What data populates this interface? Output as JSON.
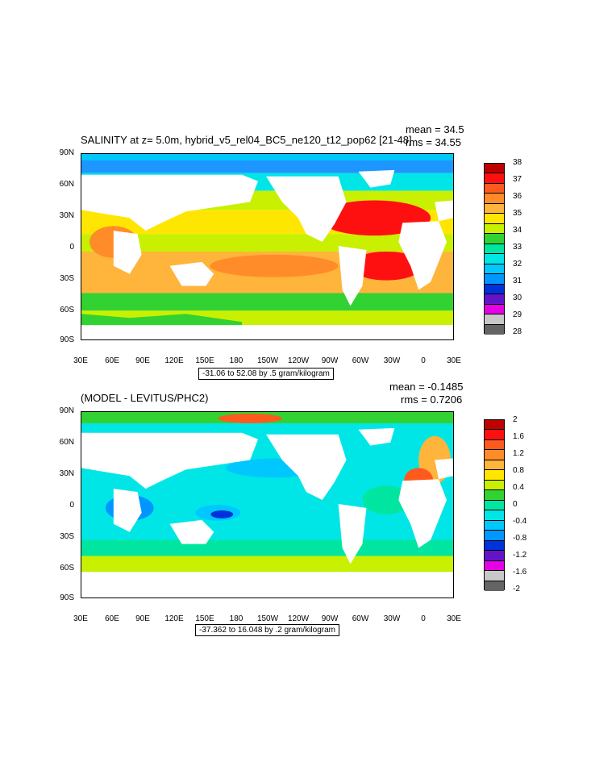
{
  "top": {
    "title": "SALINITY at z=   5.0m, hybrid_v5_rel04_BC5_ne120_t12_pop62 [21-48]",
    "mean": "mean = 34.5",
    "rms": "rms = 34.55",
    "range": "-31.06 to 52.08 by .5 gram/kilogram",
    "lat_labels": [
      "90N",
      "60N",
      "30N",
      "0",
      "30S",
      "60S",
      "90S"
    ],
    "lon_labels": [
      "30E",
      "60E",
      "90E",
      "120E",
      "150E",
      "180",
      "150W",
      "120W",
      "90W",
      "60W",
      "30W",
      "0",
      "30E"
    ],
    "legend_labels": [
      "38",
      "37",
      "36",
      "35",
      "34",
      "33",
      "32",
      "31",
      "30",
      "29",
      "28"
    ],
    "legend_colors": [
      "#bf0000",
      "#ff1010",
      "#ff5a1e",
      "#ff8c28",
      "#ffb43c",
      "#ffe600",
      "#c8f000",
      "#32d232",
      "#00e6a0",
      "#00e6e6",
      "#00c8ff",
      "#0096ff",
      "#0032dc",
      "#6414c8",
      "#e600e6",
      "#c8c8c8",
      "#646464"
    ]
  },
  "bottom": {
    "title": "(MODEL - LEVITUS/PHC2)",
    "mean": "mean = -0.1485",
    "rms": "rms = 0.7206",
    "range": "-37.362 to 16.048 by .2 gram/kilogram",
    "lat_labels": [
      "90N",
      "60N",
      "30N",
      "0",
      "30S",
      "60S",
      "90S"
    ],
    "lon_labels": [
      "30E",
      "60E",
      "90E",
      "120E",
      "150E",
      "180",
      "150W",
      "120W",
      "90W",
      "60W",
      "30W",
      "0",
      "30E"
    ],
    "legend_labels": [
      "2",
      "1.6",
      "1.2",
      "0.8",
      "0.4",
      "0",
      "-0.4",
      "-0.8",
      "-1.2",
      "-1.6",
      "-2"
    ],
    "legend_colors": [
      "#bf0000",
      "#ff1010",
      "#ff5a1e",
      "#ff8c28",
      "#ffb43c",
      "#ffe600",
      "#c8f000",
      "#32d232",
      "#00e6a0",
      "#00e6e6",
      "#00c8ff",
      "#0096ff",
      "#0032dc",
      "#6414c8",
      "#e600e6",
      "#c8c8c8",
      "#646464"
    ]
  }
}
